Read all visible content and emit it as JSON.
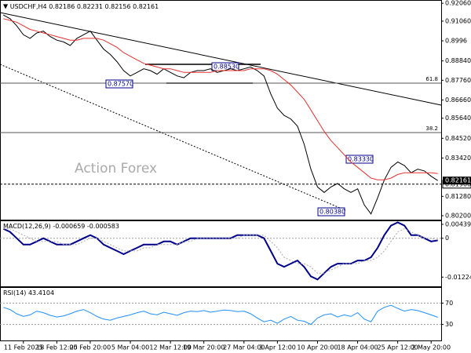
{
  "chart_data": [
    {
      "type": "line",
      "title": "USDCHF,H4",
      "ohlc": [
        0.82186,
        0.82231,
        0.82156,
        0.82161
      ],
      "categories": [
        null,
        null,
        null,
        "11 Feb 2025",
        null,
        null,
        null,
        null,
        "18 Feb 12:00",
        null,
        null,
        null,
        null,
        "25 Feb 20:00",
        null,
        null,
        null,
        null,
        null,
        "5 Mar 04:00",
        null,
        null,
        null,
        null,
        null,
        "12 Mar 12:00",
        null,
        null,
        null,
        null,
        "19 Mar 20:00",
        null,
        null,
        null,
        null,
        null,
        "27 Mar 04:00",
        null,
        null,
        null,
        null,
        "3 Apr 12:00",
        null,
        null,
        null,
        null,
        null,
        "10 Apr 20:00",
        null,
        null,
        null,
        null,
        null,
        "18 Apr 04:00",
        null,
        null,
        null,
        null,
        null,
        "25 Apr 12:00",
        null,
        null,
        null,
        null,
        "2 May 20:00",
        null
      ],
      "series": [
        {
          "color": "#000000",
          "values": [
            0.914,
            0.912,
            0.908,
            0.903,
            0.901,
            0.904,
            0.905,
            0.902,
            0.9,
            0.899,
            0.897,
            0.901,
            0.903,
            0.905,
            0.9,
            0.895,
            0.892,
            0.888,
            0.883,
            0.88,
            0.882,
            0.884,
            0.883,
            0.881,
            0.884,
            0.882,
            0.88,
            0.879,
            0.882,
            0.883,
            0.883,
            0.884,
            0.882,
            0.883,
            0.884,
            0.883,
            0.884,
            0.885,
            0.883,
            0.88,
            0.87,
            0.862,
            0.858,
            0.856,
            0.852,
            0.842,
            0.828,
            0.818,
            0.815,
            0.818,
            0.82,
            0.817,
            0.815,
            0.817,
            0.808,
            0.803,
            0.812,
            0.822,
            0.829,
            0.832,
            0.83,
            0.826,
            0.828,
            0.827,
            0.824,
            0.8216
          ]
        },
        {
          "color": "#e83030",
          "values": [
            0.912,
            0.911,
            0.91,
            0.908,
            0.906,
            0.905,
            0.904,
            0.903,
            0.902,
            0.901,
            0.9,
            0.9,
            0.901,
            0.901,
            0.901,
            0.9,
            0.898,
            0.896,
            0.893,
            0.891,
            0.889,
            0.887,
            0.886,
            0.885,
            0.884,
            0.884,
            0.883,
            0.882,
            0.882,
            0.882,
            0.882,
            0.882,
            0.883,
            0.883,
            0.883,
            0.883,
            0.883,
            0.884,
            0.884,
            0.884,
            0.883,
            0.881,
            0.878,
            0.875,
            0.871,
            0.867,
            0.861,
            0.855,
            0.849,
            0.844,
            0.84,
            0.836,
            0.832,
            0.829,
            0.826,
            0.823,
            0.822,
            0.822,
            0.823,
            0.825,
            0.826,
            0.826,
            0.826,
            0.826,
            0.826,
            0.8255
          ]
        }
      ],
      "ylim": [
        0.7998,
        0.9224
      ],
      "yticks": [
        {
          "value": 0.9206,
          "label": "0.92060"
        },
        {
          "value": 0.9106,
          "label": "0.91060"
        },
        0.8996,
        {
          "value": 0.8884,
          "label": "0.88840"
        },
        {
          "value": 0.8776,
          "label": "0.87760"
        },
        {
          "value": 0.8666,
          "label": "0.86660"
        },
        {
          "value": 0.8564,
          "label": "0.85640"
        },
        {
          "value": 0.8452,
          "label": "0.84520"
        },
        {
          "value": 0.8342,
          "label": "0.83420"
        },
        {
          "value": 0.8128,
          "label": "0.81280"
        },
        {
          "value": 0.802,
          "label": "0.80200"
        }
      ],
      "level": {
        "value": 0.8196,
        "label": "0.81960"
      },
      "fib_levels": [
        {
          "label": "61.8",
          "value": 0.876
        },
        {
          "label": "38.2",
          "value": 0.8484
        }
      ],
      "annotations": [
        "0.87570",
        "0.88530",
        "0.83330",
        "0.80380"
      ],
      "watermark": "Action Forex"
    },
    {
      "type": "line",
      "title": "MACD(12,26,9)",
      "readout": [
        -0.000659,
        -0.000583
      ],
      "series": [
        {
          "color": "#00008b",
          "values": [
            0.003,
            0.002,
            0.0,
            -0.002,
            -0.002,
            -0.001,
            0.0,
            -0.001,
            -0.002,
            -0.002,
            -0.002,
            -0.001,
            0.0,
            0.001,
            0.0,
            -0.002,
            -0.003,
            -0.004,
            -0.005,
            -0.004,
            -0.003,
            -0.002,
            -0.002,
            -0.002,
            -0.001,
            -0.001,
            -0.002,
            -0.001,
            0.0,
            0.0,
            0.0,
            0.0,
            0.0,
            0.0,
            0.0,
            0.001,
            0.001,
            0.001,
            0.001,
            0.0,
            -0.004,
            -0.008,
            -0.009,
            -0.008,
            -0.007,
            -0.009,
            -0.012,
            -0.013,
            -0.011,
            -0.009,
            -0.008,
            -0.008,
            -0.008,
            -0.007,
            -0.007,
            -0.006,
            -0.003,
            0.001,
            0.004,
            0.005,
            0.004,
            0.001,
            0.001,
            0.0,
            -0.001,
            -0.000659
          ]
        },
        {
          "color": "#aaaaaa",
          "values": [
            0.003,
            0.003,
            0.002,
            0.001,
            0.0,
            -0.001,
            -0.001,
            -0.001,
            -0.001,
            -0.002,
            -0.002,
            -0.002,
            -0.001,
            0.0,
            0.0,
            -0.001,
            -0.002,
            -0.003,
            -0.004,
            -0.004,
            -0.004,
            -0.003,
            -0.003,
            -0.002,
            -0.002,
            -0.002,
            -0.002,
            -0.001,
            -0.001,
            0.0,
            0.0,
            0.0,
            0.0,
            0.0,
            0.0,
            0.0,
            0.001,
            0.001,
            0.001,
            0.001,
            -0.001,
            -0.003,
            -0.006,
            -0.007,
            -0.008,
            -0.008,
            -0.009,
            -0.011,
            -0.011,
            -0.01,
            -0.009,
            -0.008,
            -0.008,
            -0.008,
            -0.007,
            -0.007,
            -0.006,
            -0.004,
            -0.001,
            0.002,
            0.003,
            0.002,
            0.001,
            0.0,
            0.0,
            -0.000583
          ]
        }
      ],
      "ylim": [
        -0.01514,
        0.00562
      ],
      "yticks": [
        0.004395,
        0,
        -0.012241
      ]
    },
    {
      "type": "line",
      "title": "RSI(14)",
      "readout": 43.4104,
      "series": [
        {
          "color": "#1e90ff",
          "values": [
            62,
            58,
            50,
            45,
            48,
            55,
            52,
            47,
            44,
            46,
            50,
            55,
            58,
            52,
            45,
            40,
            38,
            42,
            45,
            48,
            52,
            55,
            50,
            48,
            53,
            50,
            47,
            52,
            55,
            54,
            56,
            53,
            55,
            57,
            56,
            54,
            55,
            50,
            42,
            35,
            38,
            32,
            40,
            45,
            38,
            36,
            30,
            42,
            48,
            50,
            44,
            48,
            45,
            52,
            40,
            35,
            55,
            62,
            66,
            60,
            55,
            58,
            56,
            52,
            48,
            43.4104
          ]
        }
      ],
      "ylim": [
        0,
        100
      ],
      "yticks": [
        70,
        30
      ]
    }
  ]
}
